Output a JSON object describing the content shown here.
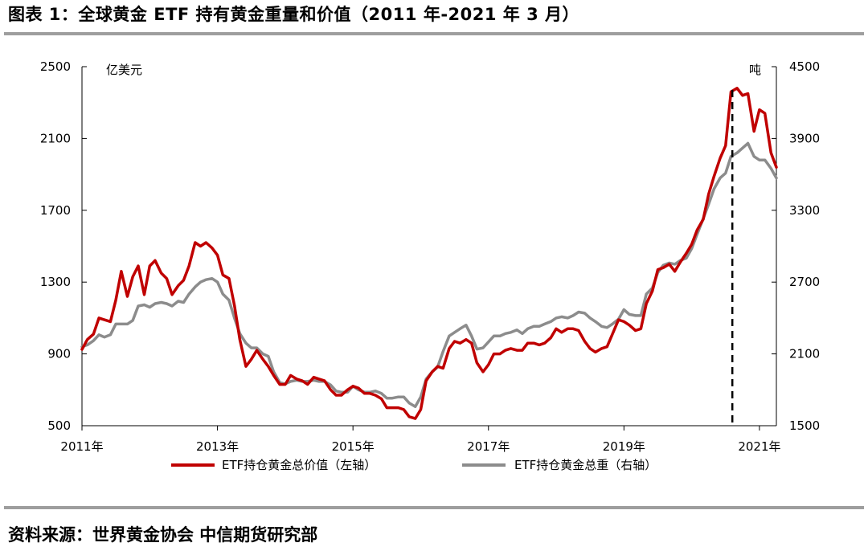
{
  "header": {
    "title": "图表 1：全球黄金 ETF 持有黄金重量和价值（2011 年-2021 年 3 月）"
  },
  "footer": {
    "source": "资料来源：世界黄金协会 中信期货研究部"
  },
  "chart_data": {
    "type": "line",
    "left_axis": {
      "unit": "亿美元",
      "ticks": [
        500,
        900,
        1300,
        1700,
        2100,
        2500
      ],
      "range": [
        500,
        2500
      ]
    },
    "right_axis": {
      "unit": "吨",
      "ticks": [
        1500,
        2100,
        2700,
        3300,
        3900,
        4500
      ],
      "range": [
        1500,
        4500
      ]
    },
    "x_axis": {
      "ticks": [
        "2011年",
        "2013年",
        "2015年",
        "2017年",
        "2019年",
        "2021年"
      ],
      "range": [
        2011.0,
        2021.25
      ]
    },
    "annotation": {
      "type": "vertical-dashed-line",
      "x": 2020.6
    },
    "series": [
      {
        "name": "ETF持仓黄金总价值（左轴）",
        "axis": "left",
        "color": "#c00000",
        "x": [
          2011.0,
          2011.08,
          2011.17,
          2011.25,
          2011.33,
          2011.42,
          2011.5,
          2011.58,
          2011.67,
          2011.75,
          2011.83,
          2011.92,
          2012.0,
          2012.08,
          2012.17,
          2012.25,
          2012.33,
          2012.42,
          2012.5,
          2012.58,
          2012.67,
          2012.75,
          2012.83,
          2012.92,
          2013.0,
          2013.08,
          2013.17,
          2013.25,
          2013.33,
          2013.42,
          2013.5,
          2013.58,
          2013.67,
          2013.75,
          2013.83,
          2013.92,
          2014.0,
          2014.08,
          2014.17,
          2014.25,
          2014.33,
          2014.42,
          2014.5,
          2014.58,
          2014.67,
          2014.75,
          2014.83,
          2014.92,
          2015.0,
          2015.08,
          2015.17,
          2015.25,
          2015.33,
          2015.42,
          2015.5,
          2015.58,
          2015.67,
          2015.75,
          2015.83,
          2015.92,
          2016.0,
          2016.08,
          2016.17,
          2016.25,
          2016.33,
          2016.42,
          2016.5,
          2016.58,
          2016.67,
          2016.75,
          2016.83,
          2016.92,
          2017.0,
          2017.08,
          2017.17,
          2017.25,
          2017.33,
          2017.42,
          2017.5,
          2017.58,
          2017.67,
          2017.75,
          2017.83,
          2017.92,
          2018.0,
          2018.08,
          2018.17,
          2018.25,
          2018.33,
          2018.42,
          2018.5,
          2018.58,
          2018.67,
          2018.75,
          2018.83,
          2018.92,
          2019.0,
          2019.08,
          2019.17,
          2019.25,
          2019.33,
          2019.42,
          2019.5,
          2019.58,
          2019.67,
          2019.75,
          2019.83,
          2019.92,
          2020.0,
          2020.08,
          2020.17,
          2020.25,
          2020.33,
          2020.42,
          2020.5,
          2020.58,
          2020.67,
          2020.75,
          2020.83,
          2020.92,
          2021.0,
          2021.08,
          2021.17,
          2021.25
        ],
        "values": [
          925,
          980,
          1010,
          1100,
          1090,
          1080,
          1200,
          1360,
          1220,
          1330,
          1390,
          1230,
          1390,
          1420,
          1350,
          1320,
          1230,
          1280,
          1310,
          1390,
          1520,
          1500,
          1520,
          1490,
          1450,
          1340,
          1320,
          1170,
          980,
          830,
          870,
          920,
          870,
          830,
          780,
          730,
          730,
          780,
          760,
          750,
          730,
          770,
          760,
          750,
          700,
          670,
          670,
          700,
          720,
          710,
          680,
          680,
          670,
          650,
          600,
          600,
          600,
          590,
          550,
          540,
          590,
          750,
          800,
          830,
          820,
          930,
          970,
          960,
          980,
          960,
          850,
          800,
          840,
          900,
          900,
          920,
          930,
          920,
          920,
          960,
          960,
          950,
          960,
          990,
          1040,
          1020,
          1040,
          1040,
          1030,
          970,
          930,
          910,
          930,
          940,
          1010,
          1090,
          1080,
          1060,
          1030,
          1040,
          1180,
          1250,
          1370,
          1380,
          1400,
          1360,
          1410,
          1460,
          1510,
          1590,
          1650,
          1790,
          1890,
          1990,
          2060,
          2360,
          2380,
          2340,
          2350,
          2140,
          2260,
          2240,
          2020,
          1940
        ]
      },
      {
        "name": "ETF持仓黄金总重（右轴）",
        "axis": "right",
        "color": "#8c8c8c",
        "x": [
          2011.0,
          2011.08,
          2011.17,
          2011.25,
          2011.33,
          2011.42,
          2011.5,
          2011.58,
          2011.67,
          2011.75,
          2011.83,
          2011.92,
          2012.0,
          2012.08,
          2012.17,
          2012.25,
          2012.33,
          2012.42,
          2012.5,
          2012.58,
          2012.67,
          2012.75,
          2012.83,
          2012.92,
          2013.0,
          2013.08,
          2013.17,
          2013.25,
          2013.33,
          2013.42,
          2013.5,
          2013.58,
          2013.67,
          2013.75,
          2013.83,
          2013.92,
          2014.0,
          2014.08,
          2014.17,
          2014.25,
          2014.33,
          2014.42,
          2014.5,
          2014.58,
          2014.67,
          2014.75,
          2014.83,
          2014.92,
          2015.0,
          2015.08,
          2015.17,
          2015.25,
          2015.33,
          2015.42,
          2015.5,
          2015.58,
          2015.67,
          2015.75,
          2015.83,
          2015.92,
          2016.0,
          2016.08,
          2016.17,
          2016.25,
          2016.33,
          2016.42,
          2016.5,
          2016.58,
          2016.67,
          2016.75,
          2016.83,
          2016.92,
          2017.0,
          2017.08,
          2017.17,
          2017.25,
          2017.33,
          2017.42,
          2017.5,
          2017.58,
          2017.67,
          2017.75,
          2017.83,
          2017.92,
          2018.0,
          2018.08,
          2018.17,
          2018.25,
          2018.33,
          2018.42,
          2018.5,
          2018.58,
          2018.67,
          2018.75,
          2018.83,
          2018.92,
          2019.0,
          2019.08,
          2019.17,
          2019.25,
          2019.33,
          2019.42,
          2019.5,
          2019.58,
          2019.67,
          2019.75,
          2019.83,
          2019.92,
          2020.0,
          2020.08,
          2020.17,
          2020.25,
          2020.33,
          2020.42,
          2020.5,
          2020.58,
          2020.67,
          2020.75,
          2020.83,
          2020.92,
          2021.0,
          2021.08,
          2021.17,
          2021.25
        ],
        "values": [
          2160,
          2175,
          2210,
          2260,
          2240,
          2260,
          2350,
          2350,
          2350,
          2380,
          2500,
          2510,
          2490,
          2520,
          2530,
          2520,
          2500,
          2540,
          2530,
          2600,
          2660,
          2700,
          2720,
          2730,
          2700,
          2600,
          2550,
          2400,
          2270,
          2190,
          2150,
          2150,
          2100,
          2080,
          1950,
          1860,
          1850,
          1870,
          1880,
          1870,
          1870,
          1880,
          1870,
          1870,
          1840,
          1790,
          1780,
          1780,
          1830,
          1800,
          1780,
          1780,
          1790,
          1770,
          1730,
          1730,
          1740,
          1740,
          1690,
          1660,
          1740,
          1890,
          1950,
          1990,
          2120,
          2250,
          2280,
          2310,
          2340,
          2250,
          2140,
          2150,
          2200,
          2250,
          2250,
          2270,
          2280,
          2300,
          2270,
          2310,
          2330,
          2330,
          2350,
          2370,
          2400,
          2410,
          2400,
          2420,
          2450,
          2440,
          2400,
          2370,
          2330,
          2320,
          2350,
          2390,
          2470,
          2430,
          2420,
          2420,
          2600,
          2650,
          2780,
          2840,
          2860,
          2850,
          2880,
          2900,
          2980,
          3100,
          3230,
          3350,
          3480,
          3570,
          3610,
          3750,
          3780,
          3820,
          3860,
          3750,
          3720,
          3720,
          3650,
          3570
        ]
      }
    ]
  }
}
